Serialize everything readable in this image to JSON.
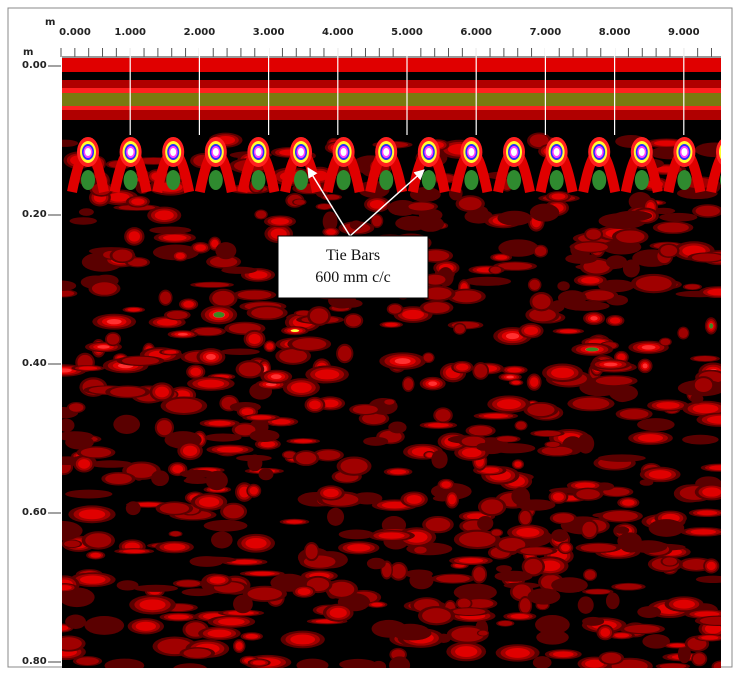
{
  "axes": {
    "x_unit": "m",
    "y_unit": "m",
    "x_ticks": [
      "0.000",
      "1.000",
      "2.000",
      "3.000",
      "4.000",
      "5.000",
      "6.000",
      "7.000",
      "8.000",
      "9.000"
    ],
    "y_ticks": [
      "0.00",
      "0.20",
      "0.40",
      "0.60",
      "0.80"
    ]
  },
  "annotation": {
    "lines": [
      "Tie Bars",
      "600 mm c/c"
    ]
  }
}
